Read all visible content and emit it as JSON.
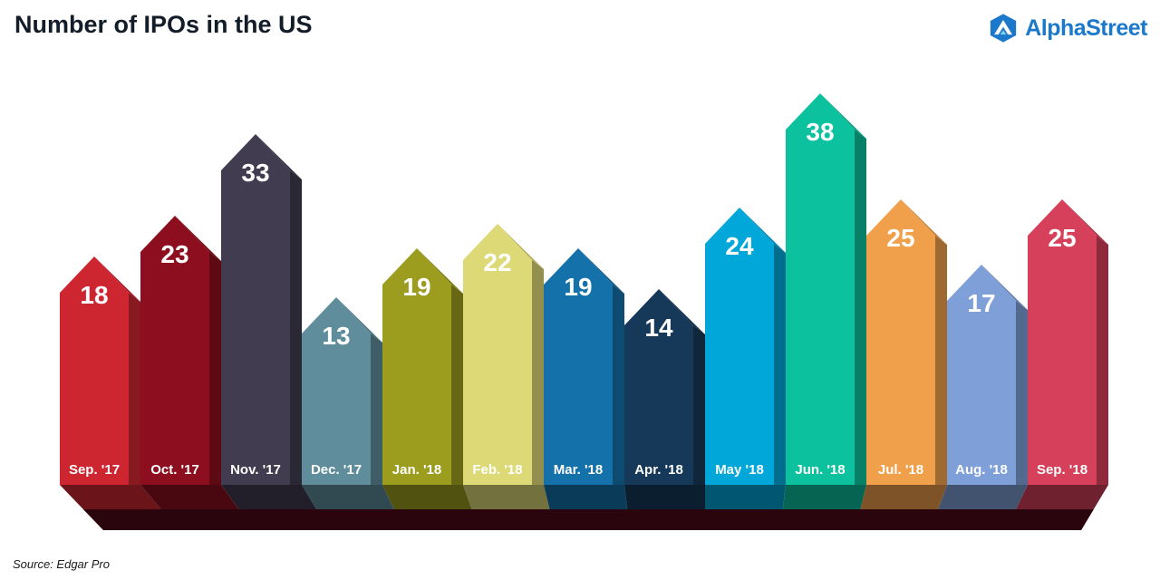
{
  "header": {
    "title": "Number of IPOs in the US",
    "brand": "AlphaStreet"
  },
  "footer": {
    "source": "Source: Edgar Pro"
  },
  "brand_color": "#1b78cb",
  "title_color": "#131c29",
  "chart_data": {
    "type": "bar",
    "title": "Number of IPOs in the US",
    "xlabel": "",
    "ylabel": "",
    "ylim": [
      0,
      40
    ],
    "grid": false,
    "legend_position": "none",
    "categories": [
      "Sep. '17",
      "Oct. '17",
      "Nov. '17",
      "Dec. '17",
      "Jan. '18",
      "Feb. '18",
      "Mar. '18",
      "Apr. '18",
      "May '18",
      "Jun. '18",
      "Jul. '18",
      "Aug. '18",
      "Sep. '18"
    ],
    "values": [
      18,
      23,
      33,
      13,
      19,
      22,
      19,
      14,
      24,
      38,
      25,
      17,
      25
    ],
    "bar_colors": [
      "#ce2631",
      "#8d0f1f",
      "#413c50",
      "#5f8d9c",
      "#9c9c1e",
      "#ded977",
      "#1471a9",
      "#16395a",
      "#01a7d9",
      "#0cc29e",
      "#f0a04b",
      "#7e9fd7",
      "#d7405a"
    ],
    "value_label_color": "#ffffff",
    "category_label_color": "#ffffff",
    "platform_color": "#2a050d",
    "style": "3d-arrow-bars-on-dark-platform"
  }
}
